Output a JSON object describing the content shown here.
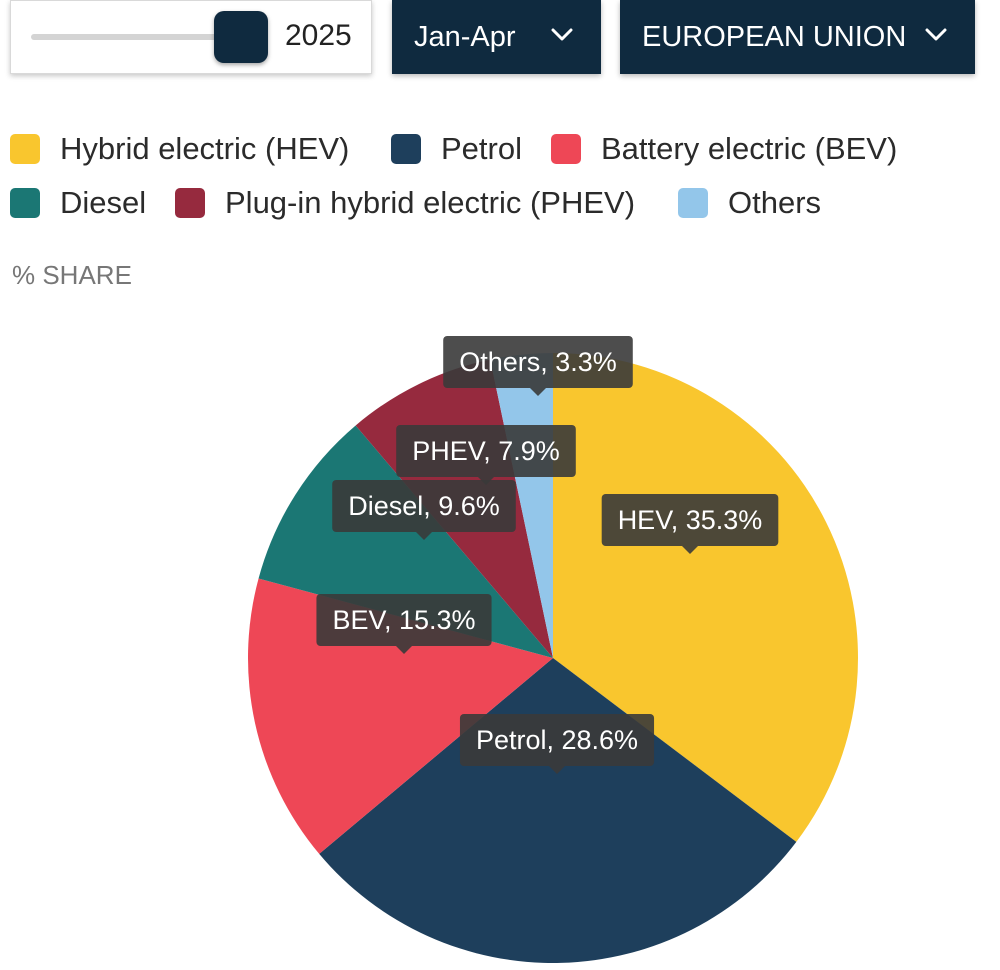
{
  "controls": {
    "year": {
      "value": "2025"
    },
    "period": {
      "label": "Jan-Apr",
      "icon": "chevron-down-icon"
    },
    "region": {
      "label": "EUROPEAN UNION",
      "icon": "chevron-down-icon"
    }
  },
  "legend": {
    "items": [
      {
        "label": "Hybrid electric (HEV)",
        "color": "#F9C62E"
      },
      {
        "label": "Petrol",
        "color": "#1E3F5C"
      },
      {
        "label": "Battery electric (BEV)",
        "color": "#EE4756"
      },
      {
        "label": "Diesel",
        "color": "#1B7774"
      },
      {
        "label": "Plug-in hybrid electric (PHEV)",
        "color": "#962A3E"
      },
      {
        "label": "Others",
        "color": "#93C6EA"
      }
    ]
  },
  "chart_data": {
    "type": "pie",
    "unit_label": "% SHARE",
    "slices": [
      {
        "label": "HEV, 35.3%",
        "name": "HEV",
        "value": 35.3,
        "color": "#F9C62E"
      },
      {
        "label": "Petrol, 28.6%",
        "name": "Petrol",
        "value": 28.6,
        "color": "#1E3F5C"
      },
      {
        "label": "BEV, 15.3%",
        "name": "BEV",
        "value": 15.3,
        "color": "#EE4756"
      },
      {
        "label": "Diesel, 9.6%",
        "name": "Diesel",
        "value": 9.6,
        "color": "#1B7774"
      },
      {
        "label": "PHEV, 7.9%",
        "name": "PHEV",
        "value": 7.9,
        "color": "#962A3E"
      },
      {
        "label": "Others, 3.3%",
        "name": "Others",
        "value": 3.3,
        "color": "#93C6EA"
      }
    ],
    "start_angle": "12 o'clock",
    "direction": "clockwise",
    "tooltip_color": "#3A3A3A"
  }
}
